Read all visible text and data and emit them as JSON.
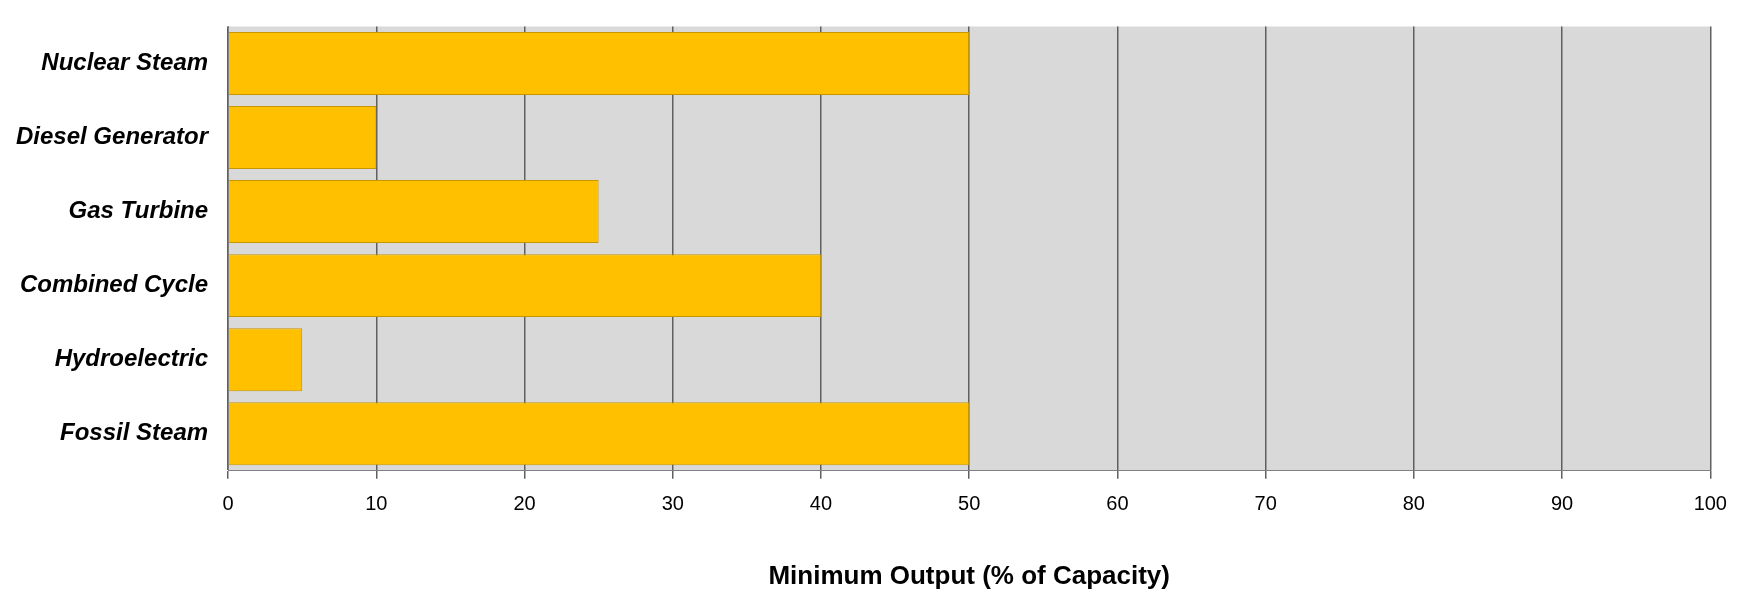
{
  "chart_data": {
    "type": "bar",
    "orientation": "horizontal",
    "xlabel": "Minimum Output (% of Capacity)",
    "categories": [
      "Nuclear Steam",
      "Diesel Generator",
      "Gas Turbine",
      "Combined Cycle",
      "Hydroelectric",
      "Fossil Steam"
    ],
    "values": [
      50,
      10,
      25,
      40,
      5,
      50
    ],
    "color": "#ffc000",
    "xlim": [
      0,
      100
    ],
    "xticks": [
      0,
      10,
      20,
      30,
      40,
      50,
      60,
      70,
      80,
      90,
      100
    ],
    "grid": "x",
    "legend": false
  }
}
